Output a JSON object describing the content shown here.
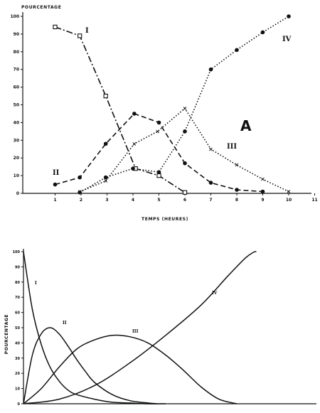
{
  "chart_data": [
    {
      "type": "line",
      "ylabel": "POURCENTAGE",
      "xlabel": "TEMPS (HEURES)",
      "panel_label": "A",
      "xlim": [
        0,
        11
      ],
      "ylim": [
        0,
        100
      ],
      "x_ticks": [
        "1",
        "2",
        "3",
        "4",
        "5",
        "6",
        "7",
        "8",
        "9",
        "10",
        "11"
      ],
      "y_ticks": [
        "0",
        "10",
        "20",
        "30",
        "40",
        "50",
        "60",
        "70",
        "80",
        "90",
        "100"
      ],
      "series": [
        {
          "name": "I",
          "marker": "open-square",
          "dash": "dashdot",
          "x": [
            1,
            1.95,
            2.95,
            4.1,
            5,
            6
          ],
          "y": [
            94,
            89,
            55,
            14,
            10,
            0.5
          ]
        },
        {
          "name": "II",
          "marker": "filled-circle",
          "dash": "dashed",
          "x": [
            1,
            1.95,
            2.95,
            4.05,
            5,
            6,
            7,
            8,
            9
          ],
          "y": [
            5,
            9,
            28,
            45,
            40,
            17,
            6,
            2,
            1
          ]
        },
        {
          "name": "III",
          "marker": "star",
          "dash": "dotted",
          "x": [
            1.95,
            2.95,
            4.05,
            4.95,
            6,
            7,
            8,
            9,
            10
          ],
          "y": [
            1,
            7,
            28,
            35,
            48,
            25,
            16,
            8,
            1
          ]
        },
        {
          "name": "IV",
          "marker": "filled-circle",
          "dash": "dotted",
          "x": [
            1.95,
            2.95,
            4,
            5,
            6,
            7,
            8,
            9,
            10
          ],
          "y": [
            0.5,
            9,
            14,
            12,
            35,
            70,
            81,
            91,
            100
          ]
        }
      ]
    },
    {
      "type": "line",
      "ylabel": "POURCENTAGE",
      "xlabel": "",
      "ylim": [
        0,
        100
      ],
      "y_ticks": [
        "0",
        "10",
        "20",
        "30",
        "40",
        "50",
        "60",
        "70",
        "80",
        "90",
        "100"
      ],
      "series": [
        {
          "name": "I",
          "x": [
            0,
            0.5,
            1,
            1.5,
            2,
            2.5,
            3,
            4,
            5,
            6,
            7,
            8
          ],
          "y": [
            100,
            62,
            39,
            24,
            15,
            9,
            6,
            3,
            1,
            0.5,
            0,
            0
          ]
        },
        {
          "name": "II",
          "x": [
            0,
            0.5,
            1,
            1.5,
            2,
            2.5,
            3,
            3.5,
            4,
            5,
            6,
            7,
            7.5
          ],
          "y": [
            0,
            32,
            46,
            50,
            46,
            38,
            29,
            21,
            14,
            6,
            2,
            0.5,
            0
          ]
        },
        {
          "name": "III",
          "x": [
            0,
            1,
            2,
            3,
            4,
            5,
            6,
            7,
            8,
            9,
            10,
            11,
            12
          ],
          "y": [
            0,
            10,
            24,
            36,
            42,
            45,
            44,
            40,
            32,
            22,
            11,
            3,
            0
          ]
        },
        {
          "name": "IV",
          "x": [
            0,
            2,
            4,
            6,
            8,
            10,
            11.5,
            12.5,
            13
          ],
          "y": [
            0,
            3,
            12,
            27,
            45,
            65,
            84,
            96,
            100
          ]
        }
      ]
    }
  ]
}
